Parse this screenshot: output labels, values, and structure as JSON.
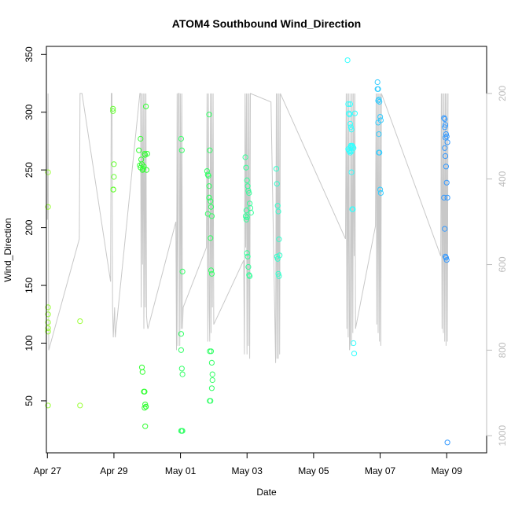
{
  "chart_data": {
    "type": "scatter",
    "title": "ATOM4 Southbound Wind_Direction",
    "xlabel": "Date",
    "ylabel": "Wind_Direction",
    "xlim": [
      -0.03,
      13.2
    ],
    "ylim": [
      5,
      357
    ],
    "x_ticks": [
      {
        "x": 0,
        "label": "Apr 27"
      },
      {
        "x": 2,
        "label": "Apr 29"
      },
      {
        "x": 4,
        "label": "May 01"
      },
      {
        "x": 6,
        "label": "May 03"
      },
      {
        "x": 8,
        "label": "May 05"
      },
      {
        "x": 10,
        "label": "May 07"
      },
      {
        "x": 12,
        "label": "May 09"
      }
    ],
    "y_ticks": [
      50,
      100,
      150,
      200,
      250,
      300,
      350
    ],
    "secondary_axis": {
      "side": "right",
      "ticks": [
        200,
        400,
        600,
        800,
        1000
      ],
      "range": [
        90,
        1040
      ],
      "reversed": true,
      "color": "#bdbdbd"
    },
    "grid": false,
    "legend": "none",
    "marker": "open-circle",
    "series": [
      {
        "color": "#99ff33",
        "x": [
          0.02,
          0.02,
          0.02,
          0.02,
          0.02,
          0.02,
          0.02,
          0.02,
          0.98,
          0.98
        ],
        "y": [
          248,
          218,
          131,
          125,
          118,
          113,
          110,
          46,
          46,
          119
        ]
      },
      {
        "color": "#66ff33",
        "x": [
          1.97,
          1.97,
          2.0,
          2.0,
          1.98,
          1.98,
          1.98
        ],
        "y": [
          303,
          301,
          255,
          244,
          233,
          233,
          233
        ]
      },
      {
        "color": "#33ff33",
        "x": [
          2.75,
          2.78,
          2.8,
          2.82,
          2.84,
          2.86,
          2.88,
          2.9,
          2.92,
          2.94,
          2.96,
          3.0,
          2.98,
          2.8,
          2.84,
          2.86,
          2.9,
          2.92,
          2.94,
          2.96,
          2.92,
          2.94,
          2.96
        ],
        "y": [
          267,
          254,
          252,
          259,
          255,
          250,
          251,
          253,
          264,
          263,
          305,
          264,
          250,
          277,
          79,
          75,
          58,
          58,
          47,
          45,
          44,
          28,
          45
        ]
      },
      {
        "color": "#33ff66",
        "x": [
          4.02,
          4.04,
          4.06,
          4.02,
          4.02,
          4.04,
          4.06,
          4.02,
          4.04,
          4.06
        ],
        "y": [
          277,
          267,
          162,
          108,
          94,
          78,
          73,
          24,
          24,
          24
        ]
      },
      {
        "color": "#33ff66",
        "x": [
          4.8,
          4.82,
          4.84,
          4.86,
          4.86,
          4.9,
          4.92,
          4.94,
          4.82,
          4.84,
          4.86,
          4.88,
          4.9,
          4.92,
          4.94,
          4.88,
          4.92,
          4.94,
          4.96,
          4.96,
          4.94,
          4.9,
          4.88,
          4.86
        ],
        "y": [
          249,
          246,
          245,
          236,
          226,
          223,
          218,
          210,
          212,
          245,
          298,
          267,
          191,
          163,
          160,
          93,
          93,
          83,
          73,
          68,
          61,
          50,
          50,
          226
        ]
      },
      {
        "color": "#33ff99",
        "x": [
          5.95,
          5.97,
          6.0,
          6.02,
          6.04,
          6.06,
          6.08,
          6.1,
          6.12,
          5.96,
          5.98,
          6.0,
          6.02,
          6.04,
          6.06,
          6.08,
          5.98,
          6.0
        ],
        "y": [
          261,
          252,
          241,
          236,
          232,
          230,
          221,
          217,
          213,
          210,
          207,
          178,
          175,
          166,
          159,
          158,
          215,
          209
        ]
      },
      {
        "color": "#33ffcc",
        "x": [
          6.88,
          6.9,
          6.92,
          6.94,
          6.96,
          6.98,
          6.9,
          6.92,
          6.94,
          6.96
        ],
        "y": [
          251,
          238,
          219,
          214,
          190,
          176,
          175,
          173,
          160,
          158
        ]
      },
      {
        "color": "#33ffff",
        "x": [
          9.02,
          9.04,
          9.06,
          9.08,
          9.1,
          9.12,
          9.14,
          9.16,
          9.18,
          9.2,
          9.04,
          9.06,
          9.08,
          9.1,
          9.12,
          9.14,
          9.16,
          9.18,
          9.2,
          9.22,
          9.24,
          9.1,
          9.12,
          9.14
        ],
        "y": [
          345,
          307,
          299,
          298,
          290,
          287,
          285,
          271,
          270,
          269,
          268,
          267,
          266,
          265,
          270,
          248,
          216,
          216,
          100,
          91,
          299,
          307,
          271,
          266
        ]
      },
      {
        "color": "#33ccff",
        "x": [
          9.92,
          9.94,
          9.96,
          9.98,
          10.0,
          10.02,
          9.94,
          9.96,
          9.98,
          10.0,
          10.02,
          9.92,
          9.94,
          9.96
        ],
        "y": [
          326,
          320,
          311,
          309,
          296,
          293,
          291,
          281,
          265,
          233,
          230,
          320,
          310,
          265
        ]
      },
      {
        "color": "#3399ff",
        "x": [
          11.92,
          11.94,
          11.96,
          11.98,
          12.0,
          12.02,
          11.94,
          11.96,
          11.98,
          12.0,
          11.92,
          11.94,
          11.96,
          11.98,
          12.0,
          12.02,
          11.94,
          11.96,
          12.02
        ],
        "y": [
          295,
          294,
          289,
          281,
          279,
          274,
          269,
          262,
          253,
          239,
          226,
          199,
          175,
          174,
          172,
          14,
          287,
          278,
          226
        ]
      }
    ],
    "pressure_trace": {
      "color": "#c8c8c8",
      "x": [
        0.0,
        0.02,
        0.04,
        0.96,
        0.98,
        1.0,
        1.02,
        1.04,
        1.9,
        1.92,
        1.94,
        1.96,
        1.98,
        2.02,
        2.04,
        2.78,
        2.8,
        2.82,
        2.84,
        2.86,
        2.88,
        2.9,
        2.92,
        2.94,
        2.96,
        2.98,
        3.0,
        3.02,
        3.86,
        3.88,
        3.9,
        3.92,
        3.94,
        3.96,
        3.98,
        4.0,
        4.02,
        4.04,
        4.06,
        4.08,
        4.78,
        4.8,
        4.82,
        4.84,
        4.86,
        4.88,
        4.9,
        4.92,
        4.94,
        4.96,
        4.98,
        5.0,
        5.9,
        5.92,
        5.94,
        5.96,
        5.98,
        6.0,
        6.02,
        6.04,
        6.06,
        6.08,
        6.1,
        6.72,
        6.86,
        6.88,
        6.9,
        6.92,
        6.94,
        6.96,
        6.98,
        7.0,
        8.96,
        8.98,
        9.0,
        9.02,
        9.04,
        9.06,
        9.08,
        9.1,
        9.12,
        9.14,
        9.16,
        9.18,
        9.2,
        9.22,
        9.24,
        9.26,
        9.86,
        9.88,
        9.9,
        9.92,
        9.94,
        9.96,
        9.98,
        10.0,
        10.02,
        10.04,
        11.82,
        11.84,
        11.86,
        11.88,
        11.9,
        11.92,
        11.94,
        11.96,
        11.98,
        12.0,
        12.02,
        12.04
      ],
      "y": [
        495,
        200,
        800,
        540,
        200,
        200,
        200,
        200,
        640,
        200,
        200,
        700,
        770,
        700,
        770,
        200,
        200,
        700,
        200,
        600,
        200,
        750,
        200,
        700,
        200,
        720,
        740,
        750,
        500,
        800,
        200,
        790,
        200,
        200,
        790,
        200,
        750,
        200,
        750,
        700,
        560,
        200,
        780,
        200,
        700,
        780,
        200,
        760,
        200,
        700,
        200,
        740,
        590,
        810,
        200,
        560,
        200,
        810,
        200,
        790,
        200,
        820,
        200,
        220,
        830,
        200,
        820,
        200,
        820,
        200,
        810,
        200,
        540,
        200,
        750,
        200,
        770,
        200,
        800,
        780,
        200,
        790,
        200,
        760,
        200,
        580,
        200,
        750,
        510,
        200,
        740,
        200,
        760,
        200,
        780,
        200,
        790,
        200,
        580,
        200,
        750,
        200,
        760,
        200,
        780,
        200,
        790,
        200,
        780,
        200
      ]
    }
  }
}
